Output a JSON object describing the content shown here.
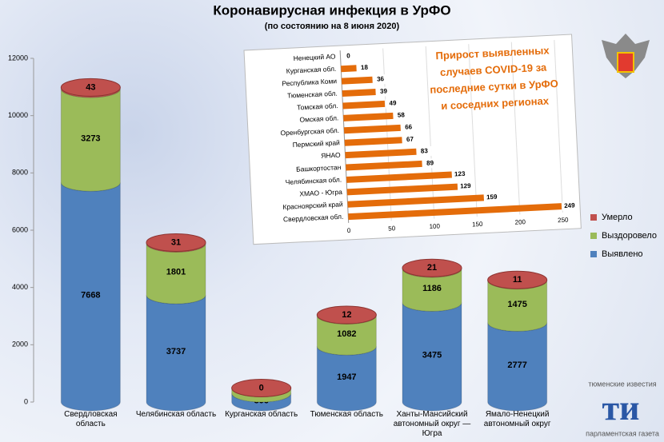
{
  "chart_data": [
    {
      "type": "bar",
      "stacked": true,
      "title": "Коронавирусная инфекция в УрФО",
      "subtitle": "(по состоянию на 8 июня 2020)",
      "categories": [
        "Свердловская область",
        "Челябинская область",
        "Курганская область",
        "Тюменская область",
        "Ханты-Мансийский автономный округ — Югра",
        "Ямало-Ненецкий автономный округ"
      ],
      "series": [
        {
          "name": "Выявлено",
          "color": "#4f81bd",
          "values": [
            7668,
            3737,
            306,
            1947,
            3475,
            2777
          ]
        },
        {
          "name": "Выздоровело",
          "color": "#9bbb59",
          "values": [
            3273,
            1801,
            183,
            1082,
            1186,
            1475
          ]
        },
        {
          "name": "Умерло",
          "color": "#c0504d",
          "values": [
            43,
            31,
            0,
            12,
            21,
            11
          ]
        }
      ],
      "ylim": [
        0,
        12000
      ],
      "yticks": [
        0,
        2000,
        4000,
        6000,
        8000,
        10000,
        12000
      ],
      "legend": "right"
    },
    {
      "type": "bar",
      "orientation": "horizontal",
      "title": "Прирост выявленных случаев COVID-19 за последние сутки в УрФО и соседних регионах",
      "categories": [
        "Ненецкий АО",
        "Курганская обл.",
        "Республика Коми",
        "Тюменская обл.",
        "Томская обл.",
        "Омская обл.",
        "Оренбургская обл.",
        "Пермский край",
        "ЯНАО",
        "Башкортостан",
        "Челябинская обл.",
        "ХМАО - Югра",
        "Красноярский край",
        "Свердловская обл."
      ],
      "values": [
        0,
        18,
        36,
        39,
        49,
        58,
        66,
        67,
        83,
        89,
        123,
        129,
        159,
        249
      ],
      "color": "#e46c0a",
      "xlim": [
        0,
        250
      ],
      "xticks": [
        0,
        50,
        100,
        150,
        200,
        250
      ],
      "grid": true
    }
  ],
  "logo": {
    "top": "тюменские известия",
    "mark": "ти",
    "bottom": "парламентская газета"
  }
}
